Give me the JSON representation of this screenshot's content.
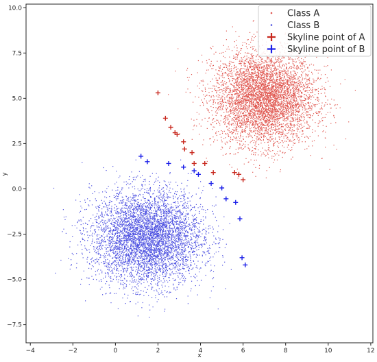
{
  "chart_data": {
    "type": "scatter",
    "title": "",
    "xlabel": "x",
    "ylabel": "y",
    "xlim": [
      -4.2,
      12.1
    ],
    "ylim": [
      -8.5,
      10.2
    ],
    "xticks": [
      -4,
      -2,
      0,
      2,
      4,
      6,
      8,
      10,
      12
    ],
    "yticks": [
      -7.5,
      -5.0,
      -2.5,
      0.0,
      2.5,
      5.0,
      7.5,
      10.0
    ],
    "xtick_labels": [
      "−4",
      "−2",
      "0",
      "2",
      "4",
      "6",
      "8",
      "10",
      "12"
    ],
    "ytick_labels": [
      "−7.5",
      "−5.0",
      "−2.5",
      "0.0",
      "2.5",
      "5.0",
      "7.5",
      "10.0"
    ],
    "grid": false,
    "legend_position": "top-right",
    "series": [
      {
        "name": "Class A",
        "marker": "dot",
        "color": "#e0564f",
        "cluster_center": [
          7.0,
          5.0
        ],
        "cluster_spread": [
          1.2,
          1.3
        ],
        "x_range": [
          2.2,
          11.3
        ],
        "y_range": [
          0.3,
          9.4
        ]
      },
      {
        "name": "Class B",
        "marker": "dot",
        "color": "#4a4ee0",
        "cluster_center": [
          1.5,
          -2.7
        ],
        "cluster_spread": [
          1.3,
          1.3
        ],
        "x_range": [
          -3.5,
          5.5
        ],
        "y_range": [
          -7.4,
          1.6
        ]
      },
      {
        "name": "Skyline point of A",
        "marker": "plus",
        "color": "#c8281e",
        "x": [
          2.0,
          2.35,
          2.6,
          2.8,
          2.9,
          3.2,
          3.25,
          3.6,
          3.7,
          4.2,
          4.6,
          5.6,
          5.8,
          6.0
        ],
        "y": [
          5.3,
          3.9,
          3.4,
          3.1,
          3.0,
          2.6,
          2.2,
          2.0,
          1.4,
          1.4,
          0.9,
          0.9,
          0.8,
          0.5
        ]
      },
      {
        "name": "Skyline point of B",
        "marker": "plus",
        "color": "#1a1ee8",
        "x": [
          1.2,
          1.5,
          2.5,
          3.2,
          3.7,
          3.9,
          4.5,
          5.0,
          5.2,
          5.65,
          5.85,
          5.95,
          6.1
        ],
        "y": [
          1.8,
          1.5,
          1.4,
          1.2,
          1.0,
          0.8,
          0.3,
          0.05,
          -0.55,
          -0.75,
          -1.65,
          -3.8,
          -4.2
        ]
      }
    ]
  }
}
